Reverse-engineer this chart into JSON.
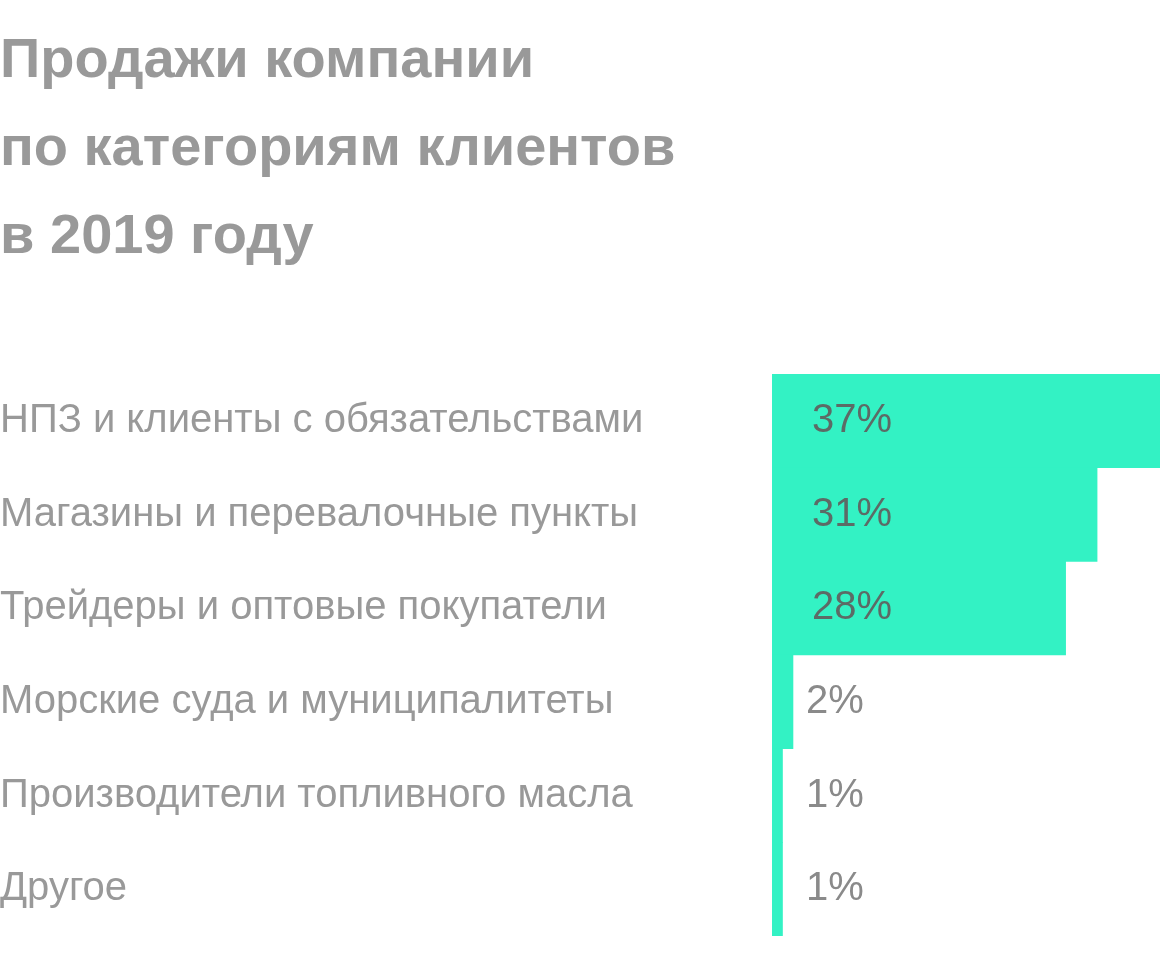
{
  "chart_data": {
    "type": "bar",
    "orientation": "horizontal",
    "title": "Продажи компании\nпо категориям клиентов\nв 2019 году",
    "categories": [
      "НПЗ и клиенты с обязательствами",
      "Магазины и перевалочные пункты",
      "Трейдеры и оптовые покупатели",
      "Морские суда и муниципалитеты",
      "Производители топливного масла",
      "Другое"
    ],
    "values": [
      37,
      31,
      28,
      2,
      1,
      1
    ],
    "value_labels": [
      "37%",
      "31%",
      "28%",
      "2%",
      "1%",
      "1%"
    ],
    "color": "#33f2c4"
  }
}
